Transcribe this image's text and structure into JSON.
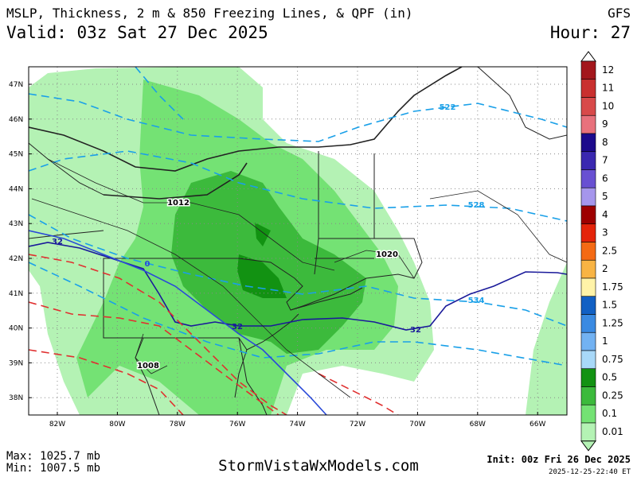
{
  "header": {
    "title": "MSLP, Thickness, 2 m & 850 Freezing Lines, & QPF (in)",
    "model": "GFS",
    "valid": "Valid: 03z Sat 27 Dec 2025",
    "hour": "Hour: 27"
  },
  "map": {
    "latitudes": [
      "47N",
      "46N",
      "45N",
      "44N",
      "43N",
      "42N",
      "41N",
      "40N",
      "39N",
      "38N"
    ],
    "longitudes": [
      "82W",
      "80W",
      "78W",
      "76W",
      "74W",
      "72W",
      "70W",
      "68W",
      "66W"
    ],
    "contour_labels": {
      "thickness": [
        "522",
        "528",
        "534"
      ],
      "pressure": [
        "1012",
        "1020",
        "1008"
      ],
      "freezing_2m": [
        "32",
        "32",
        "32"
      ],
      "freezing_850": [
        "0"
      ]
    }
  },
  "legend": {
    "entries": [
      {
        "label": "12",
        "color": "#a3171c"
      },
      {
        "label": "11",
        "color": "#c9302f"
      },
      {
        "label": "10",
        "color": "#d84a4a"
      },
      {
        "label": "9",
        "color": "#e8717c"
      },
      {
        "label": "8",
        "color": "#1c0a8c"
      },
      {
        "label": "7",
        "color": "#3a28b0"
      },
      {
        "label": "6",
        "color": "#6850d2"
      },
      {
        "label": "5",
        "color": "#a596ec"
      },
      {
        "label": "4",
        "color": "#9e0000"
      },
      {
        "label": "3",
        "color": "#e4240a"
      },
      {
        "label": "2.5",
        "color": "#f46a14"
      },
      {
        "label": "2",
        "color": "#f8b444"
      },
      {
        "label": "1.75",
        "color": "#fff3a8"
      },
      {
        "label": "1.5",
        "color": "#1160c4"
      },
      {
        "label": "1.25",
        "color": "#3a8ae2"
      },
      {
        "label": "1",
        "color": "#72b2f2"
      },
      {
        "label": "0.75",
        "color": "#a8d8f8"
      },
      {
        "label": "0.5",
        "color": "#129212"
      },
      {
        "label": "0.25",
        "color": "#3cba3c"
      },
      {
        "label": "0.1",
        "color": "#74e274"
      },
      {
        "label": "0.01",
        "color": "#b4f2b4"
      }
    ]
  },
  "footer": {
    "max": "Max: 1025.7 mb",
    "min": "Min: 1007.5 mb",
    "site": "StormVistaWxModels.com",
    "init": "Init: 00z Fri 26 Dec 2025",
    "stamp": "2025-12-25-22:40 ET"
  }
}
